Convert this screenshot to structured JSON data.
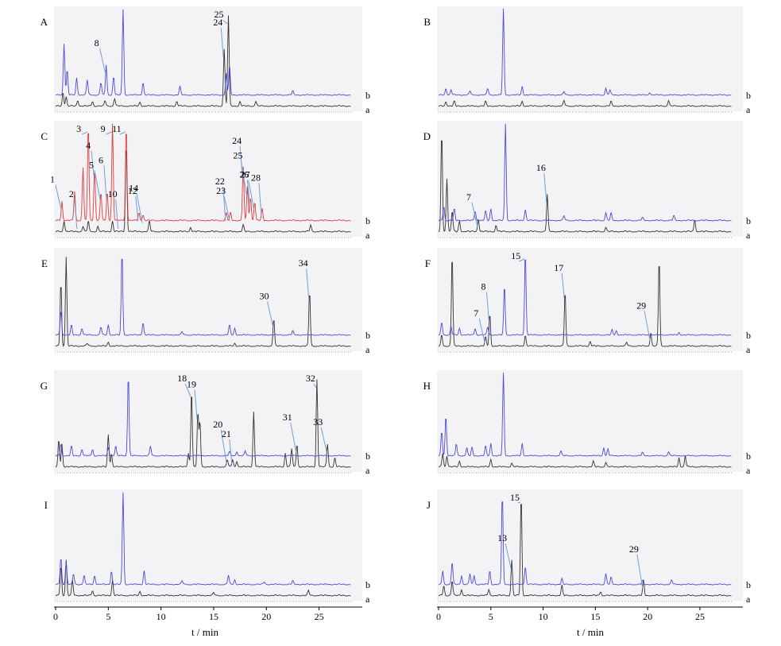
{
  "colors": {
    "trace_a": "#333333",
    "trace_b": "#4a4ad8",
    "trace_b_panel_C": "#e23a3a",
    "arrow": "#6f9fd8",
    "plot_background": "#f3f3f6"
  },
  "chart_data": [
    {
      "type": "line",
      "panel": "A",
      "x_range": [
        0,
        28
      ],
      "trace_labels": [
        "a",
        "b"
      ],
      "peaks_b": [
        [
          0.8,
          0.6
        ],
        [
          1.1,
          0.3
        ],
        [
          2.0,
          0.2
        ],
        [
          3.0,
          0.18
        ],
        [
          4.3,
          0.15
        ],
        [
          4.8,
          0.35
        ],
        [
          5.5,
          0.22
        ],
        [
          6.4,
          1.0
        ],
        [
          8.3,
          0.15
        ],
        [
          11.8,
          0.1
        ],
        [
          16.2,
          0.25
        ],
        [
          16.5,
          0.35
        ],
        [
          22.5,
          0.05
        ]
      ],
      "peaks_a": [
        [
          0.7,
          0.15
        ],
        [
          1.0,
          0.1
        ],
        [
          2.1,
          0.06
        ],
        [
          3.5,
          0.05
        ],
        [
          4.7,
          0.06
        ],
        [
          5.6,
          0.08
        ],
        [
          8.0,
          0.04
        ],
        [
          11.5,
          0.05
        ],
        [
          16.0,
          0.6
        ],
        [
          16.4,
          0.95
        ],
        [
          17.5,
          0.05
        ],
        [
          19.0,
          0.05
        ]
      ],
      "annotations": [
        {
          "label": "8",
          "x": 4.8
        },
        {
          "label": "24",
          "x": 16.0
        },
        {
          "label": "25",
          "x": 16.4
        }
      ]
    },
    {
      "type": "line",
      "panel": "B",
      "x_range": [
        0,
        28
      ],
      "trace_labels": [
        "b",
        "a"
      ],
      "peaks_b": [
        [
          0.7,
          0.08
        ],
        [
          1.2,
          0.06
        ],
        [
          3.0,
          0.05
        ],
        [
          4.7,
          0.08
        ],
        [
          6.2,
          1.0
        ],
        [
          8.0,
          0.1
        ],
        [
          12.0,
          0.04
        ],
        [
          16.0,
          0.08
        ],
        [
          16.4,
          0.06
        ],
        [
          20.2,
          0.03
        ]
      ],
      "peaks_a": [
        [
          0.7,
          0.05
        ],
        [
          1.5,
          0.05
        ],
        [
          4.5,
          0.05
        ],
        [
          8.0,
          0.05
        ],
        [
          12.0,
          0.06
        ],
        [
          16.5,
          0.05
        ],
        [
          22.0,
          0.06
        ]
      ],
      "annotations": []
    },
    {
      "type": "line",
      "panel": "C",
      "x_range": [
        0,
        28
      ],
      "trace_labels": [
        "b",
        "a"
      ],
      "peaks_b": [
        [
          0.6,
          0.2
        ],
        [
          1.8,
          0.3
        ],
        [
          2.6,
          0.55
        ],
        [
          3.1,
          1.0
        ],
        [
          3.7,
          0.55
        ],
        [
          4.3,
          0.3
        ],
        [
          4.9,
          0.3
        ],
        [
          5.4,
          1.0
        ],
        [
          6.7,
          1.0
        ],
        [
          7.9,
          0.08
        ],
        [
          8.3,
          0.06
        ],
        [
          16.2,
          0.08
        ],
        [
          16.6,
          0.08
        ],
        [
          17.8,
          0.55
        ],
        [
          18.2,
          0.35
        ],
        [
          18.5,
          0.25
        ],
        [
          18.9,
          0.2
        ],
        [
          19.6,
          0.12
        ]
      ],
      "peaks_a": [
        [
          0.8,
          0.1
        ],
        [
          2.6,
          0.05
        ],
        [
          3.1,
          0.1
        ],
        [
          4.0,
          0.05
        ],
        [
          5.4,
          0.1
        ],
        [
          6.7,
          0.85
        ],
        [
          8.9,
          0.1
        ],
        [
          12.8,
          0.04
        ],
        [
          17.8,
          0.06
        ],
        [
          24.2,
          0.06
        ]
      ],
      "annotations": [
        {
          "label": "1",
          "x": 0.6
        },
        {
          "label": "2",
          "x": 2.1
        },
        {
          "label": "3",
          "x": 3.1
        },
        {
          "label": "4",
          "x": 3.7
        },
        {
          "label": "5",
          "x": 4.3
        },
        {
          "label": "6",
          "x": 4.9
        },
        {
          "label": "9",
          "x": 5.4
        },
        {
          "label": "10",
          "x": 6.0
        },
        {
          "label": "11",
          "x": 6.7
        },
        {
          "label": "12",
          "x": 7.9
        },
        {
          "label": "14",
          "x": 8.3
        },
        {
          "label": "22",
          "x": 16.2
        },
        {
          "label": "23",
          "x": 16.6
        },
        {
          "label": "24",
          "x": 17.8
        },
        {
          "label": "25",
          "x": 18.2
        },
        {
          "label": "26",
          "x": 18.5
        },
        {
          "label": "27",
          "x": 18.9
        },
        {
          "label": "28",
          "x": 19.6
        }
      ]
    },
    {
      "type": "line",
      "panel": "D",
      "x_range": [
        0,
        28
      ],
      "trace_labels": [
        "b",
        "a"
      ],
      "peaks_b": [
        [
          0.5,
          0.15
        ],
        [
          1.5,
          0.12
        ],
        [
          3.5,
          0.1
        ],
        [
          4.5,
          0.1
        ],
        [
          5.0,
          0.12
        ],
        [
          6.4,
          1.0
        ],
        [
          8.3,
          0.12
        ],
        [
          12.0,
          0.05
        ],
        [
          16.0,
          0.08
        ],
        [
          16.5,
          0.08
        ],
        [
          19.5,
          0.03
        ],
        [
          22.5,
          0.05
        ]
      ],
      "peaks_a": [
        [
          0.3,
          0.95
        ],
        [
          0.8,
          0.5
        ],
        [
          1.3,
          0.2
        ],
        [
          2.0,
          0.1
        ],
        [
          3.8,
          0.12
        ],
        [
          5.5,
          0.06
        ],
        [
          10.4,
          0.35
        ],
        [
          16.0,
          0.04
        ],
        [
          24.5,
          0.12
        ]
      ],
      "annotations": [
        {
          "label": "7",
          "x": 3.8
        },
        {
          "label": "16",
          "x": 10.4
        }
      ]
    },
    {
      "type": "line",
      "panel": "E",
      "x_range": [
        0,
        28
      ],
      "trace_labels": [
        "b",
        "a"
      ],
      "peaks_b": [
        [
          0.5,
          0.3
        ],
        [
          1.5,
          0.12
        ],
        [
          2.5,
          0.08
        ],
        [
          4.3,
          0.1
        ],
        [
          5.0,
          0.12
        ],
        [
          6.3,
          1.0
        ],
        [
          8.3,
          0.15
        ],
        [
          12.0,
          0.04
        ],
        [
          16.5,
          0.12
        ],
        [
          17.0,
          0.08
        ],
        [
          22.5,
          0.05
        ]
      ],
      "peaks_a": [
        [
          0.5,
          0.7
        ],
        [
          1.0,
          0.95
        ],
        [
          3.0,
          0.03
        ],
        [
          5.0,
          0.04
        ],
        [
          17.0,
          0.03
        ],
        [
          20.7,
          0.3
        ],
        [
          24.1,
          0.6
        ]
      ],
      "annotations": [
        {
          "label": "30",
          "x": 20.7
        },
        {
          "label": "34",
          "x": 24.1
        }
      ]
    },
    {
      "type": "line",
      "panel": "F",
      "x_range": [
        0,
        28
      ],
      "trace_labels": [
        "b",
        "a"
      ],
      "peaks_b": [
        [
          0.3,
          0.15
        ],
        [
          1.2,
          0.1
        ],
        [
          2.0,
          0.08
        ],
        [
          3.5,
          0.08
        ],
        [
          4.7,
          0.1
        ],
        [
          6.3,
          0.6
        ],
        [
          8.3,
          1.0
        ],
        [
          16.6,
          0.06
        ],
        [
          17.0,
          0.05
        ],
        [
          23.0,
          0.03
        ]
      ],
      "peaks_a": [
        [
          0.3,
          0.12
        ],
        [
          1.3,
          1.0
        ],
        [
          4.5,
          0.1
        ],
        [
          4.9,
          0.35
        ],
        [
          8.3,
          0.12
        ],
        [
          12.1,
          0.6
        ],
        [
          14.5,
          0.05
        ],
        [
          18.0,
          0.04
        ],
        [
          20.3,
          0.15
        ],
        [
          21.1,
          0.95
        ]
      ],
      "annotations": [
        {
          "label": "7",
          "x": 4.5
        },
        {
          "label": "8",
          "x": 4.9
        },
        {
          "label": "15",
          "x": 8.3
        },
        {
          "label": "17",
          "x": 12.1
        },
        {
          "label": "29",
          "x": 20.3
        }
      ]
    },
    {
      "type": "line",
      "panel": "G",
      "x_range": [
        0,
        28
      ],
      "trace_labels": [
        "b",
        "a"
      ],
      "peaks_b": [
        [
          0.5,
          0.15
        ],
        [
          1.5,
          0.12
        ],
        [
          2.5,
          0.08
        ],
        [
          3.5,
          0.08
        ],
        [
          5.0,
          0.1
        ],
        [
          5.7,
          0.12
        ],
        [
          6.9,
          1.0
        ],
        [
          9.0,
          0.12
        ],
        [
          16.5,
          0.05
        ],
        [
          17.2,
          0.05
        ],
        [
          18.0,
          0.06
        ]
      ],
      "peaks_a": [
        [
          0.3,
          0.3
        ],
        [
          0.6,
          0.25
        ],
        [
          5.0,
          0.35
        ],
        [
          5.3,
          0.15
        ],
        [
          12.6,
          0.15
        ],
        [
          12.9,
          0.85
        ],
        [
          13.5,
          0.6
        ],
        [
          13.7,
          0.5
        ],
        [
          16.3,
          0.08
        ],
        [
          16.8,
          0.08
        ],
        [
          17.2,
          0.06
        ],
        [
          18.8,
          0.6
        ],
        [
          21.8,
          0.15
        ],
        [
          22.4,
          0.2
        ],
        [
          22.9,
          0.25
        ],
        [
          24.8,
          0.95
        ],
        [
          25.8,
          0.25
        ],
        [
          26.5,
          0.1
        ]
      ],
      "annotations": [
        {
          "label": "18",
          "x": 12.9
        },
        {
          "label": "19",
          "x": 13.5
        },
        {
          "label": "20",
          "x": 16.3
        },
        {
          "label": "21",
          "x": 16.8
        },
        {
          "label": "31",
          "x": 22.9
        },
        {
          "label": "32",
          "x": 24.8
        },
        {
          "label": "33",
          "x": 25.8
        }
      ]
    },
    {
      "type": "line",
      "panel": "H",
      "x_range": [
        0,
        28
      ],
      "trace_labels": [
        "b",
        "a"
      ],
      "peaks_b": [
        [
          0.3,
          0.3
        ],
        [
          0.7,
          0.5
        ],
        [
          1.7,
          0.15
        ],
        [
          2.7,
          0.1
        ],
        [
          3.2,
          0.1
        ],
        [
          4.5,
          0.12
        ],
        [
          5.0,
          0.15
        ],
        [
          6.2,
          1.0
        ],
        [
          8.0,
          0.15
        ],
        [
          11.7,
          0.06
        ],
        [
          15.8,
          0.1
        ],
        [
          16.2,
          0.08
        ],
        [
          19.5,
          0.04
        ],
        [
          22.0,
          0.05
        ]
      ],
      "peaks_a": [
        [
          0.4,
          0.15
        ],
        [
          0.8,
          0.12
        ],
        [
          2.0,
          0.06
        ],
        [
          5.0,
          0.08
        ],
        [
          7.0,
          0.04
        ],
        [
          14.8,
          0.06
        ],
        [
          16.0,
          0.05
        ],
        [
          23.0,
          0.1
        ],
        [
          23.6,
          0.12
        ]
      ],
      "annotations": []
    },
    {
      "type": "line",
      "panel": "I",
      "x_range": [
        0,
        28
      ],
      "trace_labels": [
        "b",
        "a"
      ],
      "peaks_b": [
        [
          0.5,
          0.3
        ],
        [
          1.0,
          0.25
        ],
        [
          1.7,
          0.12
        ],
        [
          2.7,
          0.1
        ],
        [
          3.7,
          0.1
        ],
        [
          5.3,
          0.15
        ],
        [
          6.4,
          1.0
        ],
        [
          8.4,
          0.15
        ],
        [
          12.0,
          0.04
        ],
        [
          16.4,
          0.1
        ],
        [
          17.0,
          0.05
        ],
        [
          19.8,
          0.03
        ],
        [
          22.5,
          0.04
        ]
      ],
      "peaks_a": [
        [
          0.5,
          0.3
        ],
        [
          1.0,
          0.35
        ],
        [
          1.6,
          0.15
        ],
        [
          3.5,
          0.05
        ],
        [
          5.4,
          0.15
        ],
        [
          8.0,
          0.04
        ],
        [
          15.0,
          0.03
        ],
        [
          24.0,
          0.05
        ]
      ],
      "annotations": []
    },
    {
      "type": "line",
      "panel": "J",
      "x_range": [
        0,
        28
      ],
      "trace_labels": [
        "b",
        "a"
      ],
      "peaks_b": [
        [
          0.4,
          0.15
        ],
        [
          1.3,
          0.25
        ],
        [
          2.2,
          0.1
        ],
        [
          3.0,
          0.12
        ],
        [
          3.4,
          0.1
        ],
        [
          4.9,
          0.15
        ],
        [
          6.1,
          1.0
        ],
        [
          8.3,
          0.2
        ],
        [
          11.8,
          0.06
        ],
        [
          16.0,
          0.12
        ],
        [
          16.5,
          0.08
        ],
        [
          19.5,
          0.04
        ],
        [
          22.3,
          0.05
        ]
      ],
      "peaks_a": [
        [
          0.5,
          0.1
        ],
        [
          1.3,
          0.15
        ],
        [
          2.2,
          0.06
        ],
        [
          4.8,
          0.06
        ],
        [
          7.0,
          0.35
        ],
        [
          7.9,
          1.0
        ],
        [
          11.8,
          0.1
        ],
        [
          15.5,
          0.04
        ],
        [
          19.6,
          0.15
        ]
      ],
      "annotations": [
        {
          "label": "13",
          "x": 7.0
        },
        {
          "label": "15",
          "x": 7.9
        },
        {
          "label": "29",
          "x": 19.6
        }
      ]
    }
  ],
  "axes": {
    "left": {
      "ticks": [
        "0",
        "5",
        "10",
        "15",
        "20",
        "25"
      ],
      "title": "t / min"
    },
    "right": {
      "ticks": [
        "0",
        "5",
        "10",
        "15",
        "20",
        "25"
      ],
      "title": "t / min"
    }
  }
}
